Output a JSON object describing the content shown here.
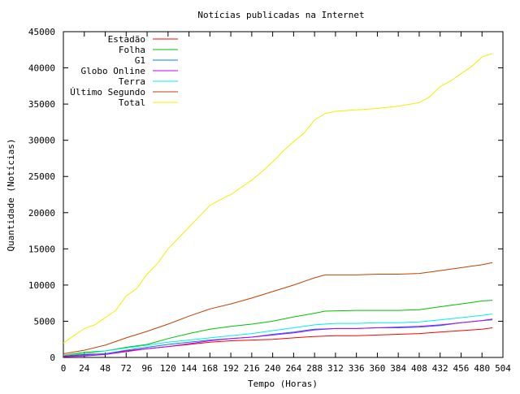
{
  "chart_data": {
    "type": "line",
    "title": "Notícias publicadas na Internet",
    "xlabel": "Tempo (Horas)",
    "ylabel": "Quantidade (Notícias)",
    "xlim": [
      0,
      504
    ],
    "ylim": [
      0,
      45000
    ],
    "xticks": [
      0,
      24,
      48,
      72,
      96,
      120,
      144,
      168,
      192,
      216,
      240,
      264,
      288,
      312,
      336,
      360,
      384,
      408,
      432,
      456,
      480,
      504
    ],
    "yticks": [
      0,
      5000,
      10000,
      15000,
      20000,
      25000,
      30000,
      35000,
      40000,
      45000
    ],
    "legend_position": "top-left",
    "grid": false,
    "series": [
      {
        "name": "Estadão",
        "color": "#ff0000",
        "points": [
          [
            0,
            200
          ],
          [
            24,
            400
          ],
          [
            48,
            500
          ],
          [
            72,
            900
          ],
          [
            96,
            1200
          ],
          [
            120,
            1500
          ],
          [
            144,
            1800
          ],
          [
            168,
            2100
          ],
          [
            192,
            2300
          ],
          [
            216,
            2400
          ],
          [
            240,
            2500
          ],
          [
            264,
            2700
          ],
          [
            288,
            2900
          ],
          [
            312,
            3000
          ],
          [
            336,
            3000
          ],
          [
            360,
            3100
          ],
          [
            384,
            3200
          ],
          [
            408,
            3300
          ],
          [
            432,
            3500
          ],
          [
            456,
            3700
          ],
          [
            480,
            3900
          ],
          [
            492,
            4100
          ]
        ]
      },
      {
        "name": "Folha",
        "color": "#00c000",
        "points": [
          [
            0,
            300
          ],
          [
            24,
            700
          ],
          [
            48,
            900
          ],
          [
            72,
            1400
          ],
          [
            96,
            1800
          ],
          [
            120,
            2600
          ],
          [
            144,
            3300
          ],
          [
            168,
            3900
          ],
          [
            192,
            4300
          ],
          [
            216,
            4600
          ],
          [
            240,
            5000
          ],
          [
            264,
            5600
          ],
          [
            288,
            6100
          ],
          [
            300,
            6400
          ],
          [
            336,
            6500
          ],
          [
            360,
            6500
          ],
          [
            384,
            6500
          ],
          [
            408,
            6600
          ],
          [
            432,
            7000
          ],
          [
            456,
            7400
          ],
          [
            480,
            7800
          ],
          [
            492,
            7900
          ]
        ]
      },
      {
        "name": "G1",
        "color": "#0080ff",
        "points": [
          [
            0,
            100
          ],
          [
            24,
            300
          ],
          [
            48,
            500
          ],
          [
            72,
            1000
          ],
          [
            96,
            1400
          ],
          [
            120,
            1800
          ],
          [
            144,
            2100
          ],
          [
            168,
            2400
          ],
          [
            192,
            2600
          ],
          [
            216,
            2800
          ],
          [
            240,
            3200
          ],
          [
            264,
            3500
          ],
          [
            288,
            3900
          ],
          [
            312,
            4000
          ],
          [
            336,
            4000
          ],
          [
            360,
            4100
          ],
          [
            384,
            4100
          ],
          [
            408,
            4200
          ],
          [
            432,
            4400
          ],
          [
            456,
            4800
          ],
          [
            480,
            5100
          ],
          [
            492,
            5200
          ]
        ]
      },
      {
        "name": "Globo Online",
        "color": "#c000ff",
        "points": [
          [
            0,
            100
          ],
          [
            24,
            200
          ],
          [
            48,
            400
          ],
          [
            72,
            800
          ],
          [
            96,
            1200
          ],
          [
            120,
            1500
          ],
          [
            144,
            1900
          ],
          [
            168,
            2300
          ],
          [
            192,
            2600
          ],
          [
            216,
            2800
          ],
          [
            240,
            3100
          ],
          [
            264,
            3400
          ],
          [
            288,
            3800
          ],
          [
            312,
            4000
          ],
          [
            336,
            4000
          ],
          [
            360,
            4100
          ],
          [
            384,
            4200
          ],
          [
            408,
            4300
          ],
          [
            432,
            4500
          ],
          [
            456,
            4800
          ],
          [
            480,
            5100
          ],
          [
            492,
            5300
          ]
        ]
      },
      {
        "name": "Terra",
        "color": "#00eeee",
        "points": [
          [
            0,
            300
          ],
          [
            24,
            500
          ],
          [
            48,
            900
          ],
          [
            72,
            1300
          ],
          [
            96,
            1700
          ],
          [
            120,
            2100
          ],
          [
            144,
            2400
          ],
          [
            168,
            2700
          ],
          [
            192,
            3000
          ],
          [
            216,
            3300
          ],
          [
            240,
            3700
          ],
          [
            264,
            4100
          ],
          [
            288,
            4500
          ],
          [
            312,
            4700
          ],
          [
            336,
            4700
          ],
          [
            360,
            4800
          ],
          [
            384,
            4800
          ],
          [
            408,
            4900
          ],
          [
            432,
            5200
          ],
          [
            456,
            5500
          ],
          [
            480,
            5800
          ],
          [
            492,
            6000
          ]
        ]
      },
      {
        "name": "Último Segundo",
        "color": "#c04000",
        "points": [
          [
            0,
            500
          ],
          [
            24,
            1000
          ],
          [
            48,
            1700
          ],
          [
            72,
            2700
          ],
          [
            96,
            3600
          ],
          [
            120,
            4600
          ],
          [
            144,
            5700
          ],
          [
            168,
            6700
          ],
          [
            192,
            7400
          ],
          [
            216,
            8200
          ],
          [
            240,
            9100
          ],
          [
            264,
            10000
          ],
          [
            288,
            11000
          ],
          [
            300,
            11400
          ],
          [
            336,
            11400
          ],
          [
            360,
            11500
          ],
          [
            384,
            11500
          ],
          [
            408,
            11600
          ],
          [
            432,
            12000
          ],
          [
            456,
            12400
          ],
          [
            480,
            12800
          ],
          [
            492,
            13100
          ]
        ]
      },
      {
        "name": "Total",
        "color": "#f0f000",
        "points": [
          [
            0,
            2000
          ],
          [
            12,
            3000
          ],
          [
            24,
            4000
          ],
          [
            36,
            4500
          ],
          [
            48,
            5500
          ],
          [
            60,
            6500
          ],
          [
            72,
            8500
          ],
          [
            84,
            9500
          ],
          [
            96,
            11500
          ],
          [
            108,
            13000
          ],
          [
            120,
            15000
          ],
          [
            132,
            16500
          ],
          [
            144,
            18000
          ],
          [
            156,
            19500
          ],
          [
            168,
            21000
          ],
          [
            180,
            21800
          ],
          [
            192,
            22500
          ],
          [
            204,
            23500
          ],
          [
            216,
            24500
          ],
          [
            228,
            25700
          ],
          [
            240,
            27000
          ],
          [
            252,
            28500
          ],
          [
            264,
            29800
          ],
          [
            276,
            31000
          ],
          [
            288,
            32800
          ],
          [
            300,
            33700
          ],
          [
            312,
            34000
          ],
          [
            336,
            34200
          ],
          [
            360,
            34400
          ],
          [
            384,
            34700
          ],
          [
            408,
            35200
          ],
          [
            420,
            36000
          ],
          [
            432,
            37400
          ],
          [
            444,
            38200
          ],
          [
            456,
            39200
          ],
          [
            468,
            40200
          ],
          [
            480,
            41500
          ],
          [
            492,
            42000
          ]
        ]
      }
    ]
  }
}
